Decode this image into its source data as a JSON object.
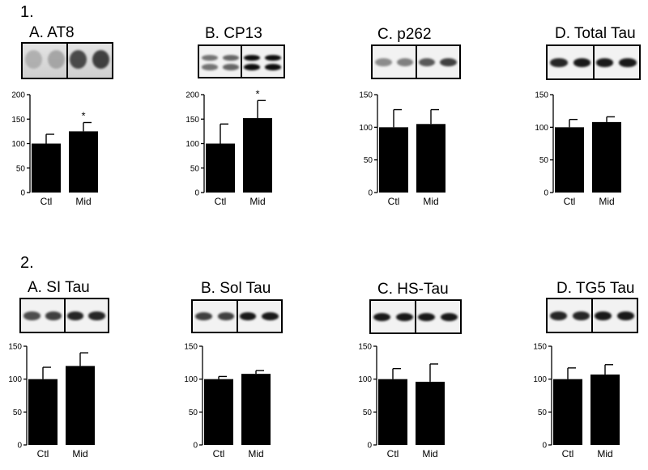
{
  "rows": [
    {
      "label": "1."
    },
    {
      "label": "2."
    }
  ],
  "chart_data": [
    {
      "type": "bar",
      "title": "A. AT8",
      "categories": [
        "Ctl",
        "Mid"
      ],
      "values": [
        100,
        125
      ],
      "errors": [
        19,
        18
      ],
      "significance": [
        "",
        "*"
      ],
      "ylim": [
        0,
        200
      ],
      "yticks": [
        "0",
        "50",
        "100",
        "150",
        "200"
      ],
      "xlabel": "",
      "ylabel": ""
    },
    {
      "type": "bar",
      "title": "B. CP13",
      "categories": [
        "Ctl",
        "Mid"
      ],
      "values": [
        100,
        152
      ],
      "errors": [
        40,
        36
      ],
      "significance": [
        "",
        "*"
      ],
      "ylim": [
        0,
        200
      ],
      "yticks": [
        "0",
        "50",
        "100",
        "150",
        "200"
      ],
      "xlabel": "",
      "ylabel": ""
    },
    {
      "type": "bar",
      "title": "C. p262",
      "categories": [
        "Ctl",
        "Mid"
      ],
      "values": [
        100,
        105
      ],
      "errors": [
        27,
        22
      ],
      "significance": [
        "",
        ""
      ],
      "ylim": [
        0,
        150
      ],
      "yticks": [
        "0",
        "50",
        "100",
        "150"
      ],
      "xlabel": "",
      "ylabel": ""
    },
    {
      "type": "bar",
      "title": "D. Total Tau",
      "categories": [
        "Ctl",
        "Mid"
      ],
      "values": [
        100,
        108
      ],
      "errors": [
        12,
        8
      ],
      "significance": [
        "",
        ""
      ],
      "ylim": [
        0,
        150
      ],
      "yticks": [
        "0",
        "50",
        "100",
        "150"
      ],
      "xlabel": "",
      "ylabel": ""
    },
    {
      "type": "bar",
      "title": "A. SI Tau",
      "categories": [
        "Ctl",
        "Mid"
      ],
      "values": [
        100,
        120
      ],
      "errors": [
        18,
        20
      ],
      "significance": [
        "",
        ""
      ],
      "ylim": [
        0,
        150
      ],
      "yticks": [
        "0",
        "50",
        "100",
        "150"
      ],
      "xlabel": "",
      "ylabel": ""
    },
    {
      "type": "bar",
      "title": "B. Sol Tau",
      "categories": [
        "Ctl",
        "Mid"
      ],
      "values": [
        100,
        108
      ],
      "errors": [
        4,
        5
      ],
      "significance": [
        "",
        ""
      ],
      "ylim": [
        0,
        150
      ],
      "yticks": [
        "0",
        "50",
        "100",
        "150"
      ],
      "xlabel": "",
      "ylabel": ""
    },
    {
      "type": "bar",
      "title": "C. HS-Tau",
      "categories": [
        "Ctl",
        "Mid"
      ],
      "values": [
        100,
        96
      ],
      "errors": [
        16,
        27
      ],
      "significance": [
        "",
        ""
      ],
      "ylim": [
        0,
        150
      ],
      "yticks": [
        "0",
        "50",
        "100",
        "150"
      ],
      "xlabel": "",
      "ylabel": ""
    },
    {
      "type": "bar",
      "title": "D. TG5 Tau",
      "categories": [
        "Ctl",
        "Mid"
      ],
      "values": [
        100,
        107
      ],
      "errors": [
        17,
        15
      ],
      "significance": [
        "",
        ""
      ],
      "ylim": [
        0,
        150
      ],
      "yticks": [
        "0",
        "50",
        "100",
        "150"
      ],
      "xlabel": "",
      "ylabel": ""
    }
  ],
  "blots": [
    {
      "panel": "A. AT8",
      "lanes": [
        0.35,
        0.4,
        0.85,
        0.9
      ],
      "style": "smear"
    },
    {
      "panel": "B. CP13",
      "lanes": [
        0.55,
        0.6,
        0.95,
        0.95
      ],
      "style": "double"
    },
    {
      "panel": "C. p262",
      "lanes": [
        0.45,
        0.5,
        0.65,
        0.75
      ],
      "style": "single"
    },
    {
      "panel": "D. Total Tau",
      "lanes": [
        0.85,
        0.9,
        0.9,
        0.9
      ],
      "style": "single"
    },
    {
      "panel": "A. SI Tau",
      "lanes": [
        0.7,
        0.75,
        0.85,
        0.85
      ],
      "style": "single"
    },
    {
      "panel": "B. Sol Tau",
      "lanes": [
        0.75,
        0.75,
        0.9,
        0.9
      ],
      "style": "single"
    },
    {
      "panel": "C. HS-Tau",
      "lanes": [
        0.9,
        0.9,
        0.9,
        0.9
      ],
      "style": "single"
    },
    {
      "panel": "D. TG5 Tau",
      "lanes": [
        0.85,
        0.85,
        0.9,
        0.9
      ],
      "style": "single"
    }
  ]
}
